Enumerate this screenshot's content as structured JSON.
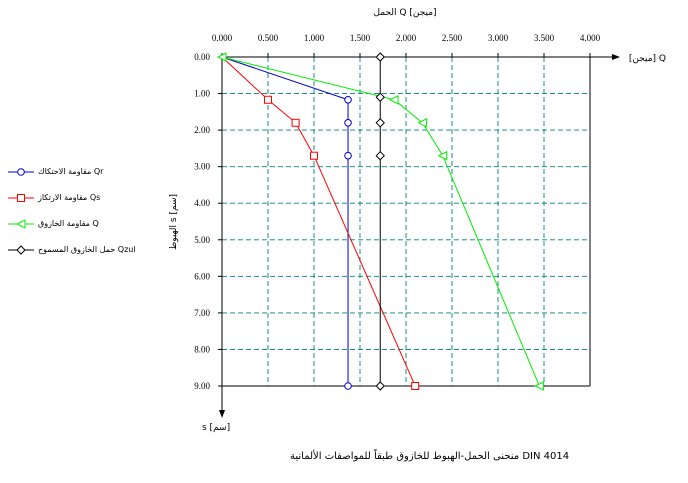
{
  "chart_data": {
    "type": "line",
    "title": "الحمل Q [ميجن]",
    "xlabel_right": "[ميجن] Q",
    "ylabel": "الهبوط s [سم]",
    "ylabel_bottom": "s [سم]",
    "xlim": [
      0,
      4
    ],
    "ylim": [
      0,
      9
    ],
    "y_inverted": true,
    "x_ticks": [
      "0.000",
      "0.500",
      "1.000",
      "1.500",
      "2.000",
      "2.500",
      "3.000",
      "3.500",
      "4.000"
    ],
    "y_ticks": [
      "0.00",
      "1.00",
      "2.00",
      "3.00",
      "4.00",
      "5.00",
      "6.00",
      "7.00",
      "8.00",
      "9.00"
    ],
    "grid": true,
    "legend_position": "left",
    "caption": "منحنى الحمل-الهبوط للخازوق طبقاً للمواصفات الألمانية DIN 4014",
    "series": [
      {
        "name": "مقاومة الاحتكاك Qr",
        "color": "#0000cc",
        "marker": "circle",
        "line": [
          [
            0,
            0
          ],
          [
            1.37,
            1.17
          ],
          [
            1.37,
            9.0
          ]
        ],
        "markers": [
          [
            1.37,
            1.17
          ],
          [
            1.37,
            1.8
          ],
          [
            1.37,
            2.7
          ],
          [
            1.37,
            9.0
          ]
        ]
      },
      {
        "name": "مقاومة الارتكاز Qs",
        "color": "#ff0000",
        "marker": "square",
        "line": [
          [
            0,
            0
          ],
          [
            0.5,
            1.17
          ],
          [
            0.8,
            1.8
          ],
          [
            1.0,
            2.7
          ],
          [
            2.1,
            9.0
          ]
        ],
        "markers": [
          [
            0.5,
            1.17
          ],
          [
            0.8,
            1.8
          ],
          [
            1.0,
            2.7
          ],
          [
            2.1,
            9.0
          ]
        ]
      },
      {
        "name": "مقاومة الخازوق Q",
        "color": "#00ee00",
        "marker": "triangle",
        "line": [
          [
            0,
            0
          ],
          [
            1.87,
            1.17
          ],
          [
            2.18,
            1.8
          ],
          [
            2.4,
            2.7
          ],
          [
            3.45,
            9.0
          ]
        ],
        "markers": [
          [
            0,
            0
          ],
          [
            1.87,
            1.17
          ],
          [
            2.18,
            1.8
          ],
          [
            2.4,
            2.7
          ],
          [
            3.45,
            9.0
          ]
        ]
      },
      {
        "name": "حمل الخازوق المسموح Qzul",
        "color": "#000000",
        "marker": "diamond",
        "line": [
          [
            1.72,
            0
          ],
          [
            1.72,
            9.0
          ]
        ],
        "markers": [
          [
            1.72,
            0
          ],
          [
            1.72,
            1.1
          ],
          [
            1.72,
            1.8
          ],
          [
            1.72,
            2.7
          ],
          [
            1.72,
            9.0
          ]
        ]
      }
    ]
  }
}
